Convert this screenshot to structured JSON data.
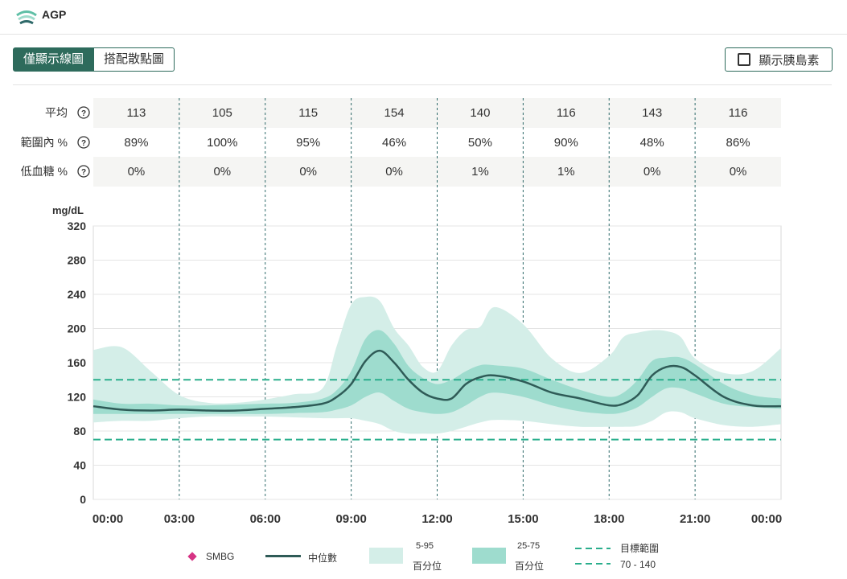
{
  "app": {
    "title": "AGP"
  },
  "toolbar": {
    "toggle_line": "僅顯示線圖",
    "toggle_scatter": "搭配散點圖",
    "insulin_label": "顯示胰島素"
  },
  "stats": {
    "rows": [
      {
        "label": "平均",
        "values": [
          "113",
          "105",
          "115",
          "154",
          "140",
          "116",
          "143",
          "116"
        ]
      },
      {
        "label": "範圍內 %",
        "values": [
          "89%",
          "100%",
          "95%",
          "46%",
          "50%",
          "90%",
          "48%",
          "86%"
        ]
      },
      {
        "label": "低血糖 %",
        "values": [
          "0%",
          "0%",
          "0%",
          "0%",
          "1%",
          "1%",
          "0%",
          "0%"
        ]
      }
    ],
    "help_symbol": "?"
  },
  "chart_data": {
    "type": "area",
    "ylabel": "mg/dL",
    "ylim": [
      0,
      320
    ],
    "yticks": [
      "320",
      "280",
      "240",
      "200",
      "160",
      "120",
      "80",
      "40",
      "0"
    ],
    "ytick_values": [
      320,
      280,
      240,
      200,
      160,
      120,
      80,
      40,
      0
    ],
    "xticks": [
      "00:00",
      "03:00",
      "06:00",
      "09:00",
      "12:00",
      "15:00",
      "18:00",
      "21:00",
      "00:00"
    ],
    "xlim_hours": [
      0,
      24
    ],
    "x_hours": [
      0,
      1,
      2,
      3,
      4,
      5,
      6,
      7,
      8,
      8.5,
      9,
      9.5,
      10,
      10.5,
      11,
      11.5,
      12,
      12.5,
      13,
      13.5,
      14,
      15,
      16,
      17,
      18,
      18.5,
      19,
      19.5,
      20,
      20.5,
      21,
      22,
      23,
      24
    ],
    "series": [
      {
        "name": "5-95 百分位",
        "role": "p5",
        "values": [
          90,
          92,
          92,
          95,
          97,
          97,
          97,
          96,
          95,
          95,
          95,
          92,
          88,
          80,
          77,
          77,
          77,
          80,
          85,
          90,
          93,
          92,
          88,
          85,
          85,
          85,
          86,
          92,
          102,
          102,
          95,
          87,
          85,
          88
        ]
      },
      {
        "name": "25-75 百分位",
        "role": "p25",
        "values": [
          100,
          100,
          100,
          100,
          100,
          100,
          100,
          101,
          102,
          105,
          110,
          120,
          125,
          115,
          106,
          102,
          100,
          102,
          110,
          120,
          125,
          120,
          110,
          103,
          100,
          102,
          108,
          120,
          130,
          130,
          124,
          112,
          108,
          106
        ]
      },
      {
        "name": "中位數",
        "role": "median",
        "values": [
          109,
          105,
          104,
          105,
          104,
          104,
          106,
          108,
          112,
          120,
          135,
          162,
          174,
          160,
          140,
          125,
          118,
          118,
          135,
          143,
          145,
          138,
          125,
          118,
          110,
          112,
          122,
          145,
          155,
          155,
          145,
          120,
          110,
          109
        ]
      },
      {
        "name": "25-75 百分位",
        "role": "p75",
        "values": [
          117,
          112,
          112,
          110,
          110,
          111,
          112,
          113,
          118,
          128,
          150,
          188,
          198,
          182,
          156,
          142,
          135,
          140,
          150,
          157,
          157,
          153,
          140,
          128,
          120,
          125,
          140,
          162,
          166,
          166,
          158,
          135,
          122,
          118
        ]
      },
      {
        "name": "5-95 百分位",
        "role": "p95",
        "values": [
          175,
          178,
          150,
          122,
          113,
          113,
          117,
          123,
          130,
          180,
          228,
          237,
          232,
          200,
          180,
          155,
          150,
          180,
          198,
          202,
          225,
          205,
          165,
          148,
          168,
          190,
          195,
          198,
          197,
          190,
          165,
          148,
          150,
          177
        ]
      }
    ],
    "target_range": [
      70,
      140
    ],
    "grid": true,
    "legend_position": "bottom",
    "colors": {
      "band_outer": "#d4eee8",
      "band_inner": "#9edcce",
      "median": "#2f5b57",
      "target": "#2aae8c",
      "smbg": "#d63384",
      "vline": "#2f6a6a"
    }
  },
  "legend": {
    "smbg": "SMBG",
    "median": "中位數",
    "outer_top": "5-95",
    "outer_bottom": "百分位",
    "inner_top": "25-75",
    "inner_bottom": "百分位",
    "target_top": "目標範圍",
    "target_bottom": "70 - 140"
  }
}
